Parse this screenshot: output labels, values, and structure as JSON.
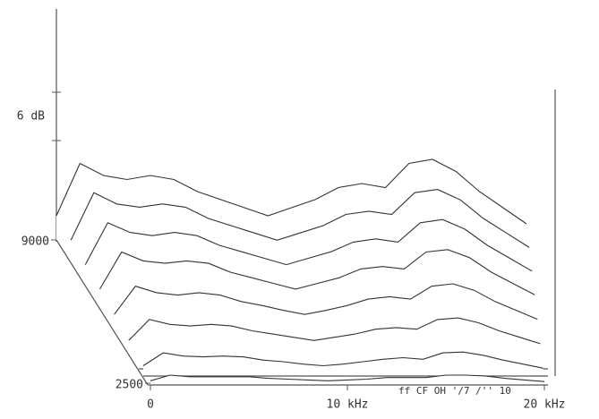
{
  "chart_data": {
    "type": "waterfall",
    "x": [
      0,
      1,
      2,
      3,
      4,
      5,
      6,
      7,
      8,
      9,
      10,
      11,
      12,
      13,
      14,
      15,
      16,
      17,
      18,
      19,
      20
    ],
    "xlim": [
      0,
      20
    ],
    "xticks": [
      {
        "value": 0,
        "label": "0"
      },
      {
        "value": 10,
        "label": "10 kHz"
      },
      {
        "value": 20,
        "label": "20 kHz"
      }
    ],
    "zlim": [
      9000,
      2500
    ],
    "zticks": [
      9000,
      2500
    ],
    "scale_bar": {
      "value": 6,
      "label": "6 dB"
    },
    "annotation": "ff CF OH '/7 /'' 10",
    "color": "#333333",
    "series": [
      {
        "z": 9000,
        "values": [
          3,
          9.5,
          8,
          7.5,
          8,
          7.5,
          6,
          5,
          4,
          3,
          4,
          5,
          6.5,
          7,
          6.5,
          9.5,
          10,
          8.5,
          6,
          4,
          2
        ]
      },
      {
        "z": 8000,
        "values": [
          2.7,
          8.6,
          7.2,
          6.8,
          7.2,
          6.8,
          5.4,
          4.5,
          3.6,
          2.7,
          3.6,
          4.5,
          5.9,
          6.3,
          5.9,
          8.6,
          9,
          7.7,
          5.4,
          3.6,
          1.8
        ]
      },
      {
        "z": 7000,
        "values": [
          2.4,
          7.6,
          6.4,
          6,
          6.4,
          6,
          4.8,
          4,
          3.2,
          2.4,
          3.2,
          4,
          5.2,
          5.6,
          5.2,
          7.6,
          8,
          6.8,
          4.8,
          3.2,
          1.6
        ]
      },
      {
        "z": 6000,
        "values": [
          2.1,
          6.7,
          5.6,
          5.3,
          5.6,
          5.3,
          4.2,
          3.5,
          2.8,
          2.1,
          2.8,
          3.5,
          4.6,
          4.9,
          4.6,
          6.7,
          7,
          6,
          4.2,
          2.8,
          1.4
        ]
      },
      {
        "z": 5000,
        "values": [
          1.7,
          5.2,
          4.4,
          4.1,
          4.4,
          4.1,
          3.3,
          2.8,
          2.2,
          1.7,
          2.2,
          2.8,
          3.6,
          3.9,
          3.6,
          5.2,
          5.5,
          4.7,
          3.3,
          2.2,
          1.1
        ]
      },
      {
        "z": 4000,
        "values": [
          1.2,
          3.8,
          3.2,
          3,
          3.2,
          3,
          2.4,
          2,
          1.6,
          1.2,
          1.6,
          2,
          2.6,
          2.8,
          2.6,
          3.8,
          4,
          3.4,
          2.4,
          1.6,
          0.8
        ]
      },
      {
        "z": 3000,
        "values": [
          0.8,
          2.4,
          2,
          1.9,
          2,
          1.9,
          1.5,
          1.3,
          1,
          0.8,
          1,
          1.3,
          1.6,
          1.8,
          1.6,
          2.4,
          2.5,
          2.1,
          1.5,
          1,
          0.5
        ]
      },
      {
        "z": 2500,
        "values": [
          0.3,
          1,
          0.8,
          0.8,
          0.8,
          0.8,
          0.6,
          0.5,
          0.4,
          0.3,
          0.4,
          0.5,
          0.7,
          0.7,
          0.7,
          1,
          1,
          0.9,
          0.6,
          0.4,
          0.2
        ]
      }
    ]
  }
}
